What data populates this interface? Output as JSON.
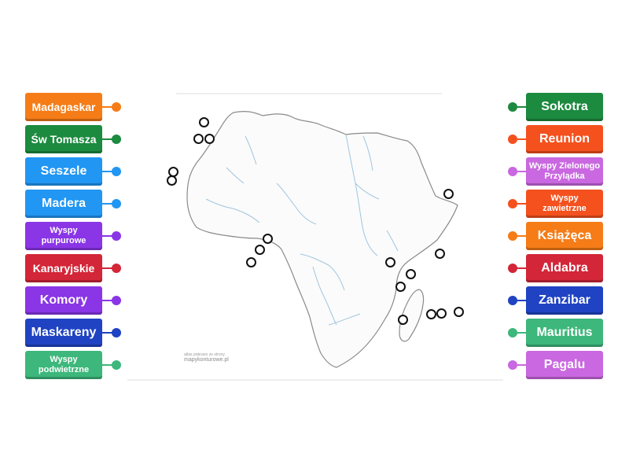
{
  "left_labels": [
    {
      "text": "Madagaskar",
      "color": "#f57c17",
      "size": "mid"
    },
    {
      "text": "Św Tomasza",
      "color": "#1c8a3f",
      "size": "mid"
    },
    {
      "text": "Seszele",
      "color": "#2196f3",
      "size": "big"
    },
    {
      "text": "Madera",
      "color": "#2196f3",
      "size": "big"
    },
    {
      "text": "Wyspy purpurowe",
      "color": "#8a35e6",
      "size": "small"
    },
    {
      "text": "Kanaryjskie",
      "color": "#d32638",
      "size": "mid"
    },
    {
      "text": "Komory",
      "color": "#8a35e6",
      "size": "big"
    },
    {
      "text": "Maskareny",
      "color": "#1f43c2",
      "size": "big"
    },
    {
      "text": "Wyspy podwietrzne",
      "color": "#3db77b",
      "size": "small"
    }
  ],
  "right_labels": [
    {
      "text": "Sokotra",
      "color": "#1c8a3f",
      "size": "big"
    },
    {
      "text": "Reunion",
      "color": "#f4511e",
      "size": "big"
    },
    {
      "text": "Wyspy Zielonego Przylądka",
      "color": "#c968e0",
      "size": "small"
    },
    {
      "text": "Wyspy zawietrzne",
      "color": "#f4511e",
      "size": "small"
    },
    {
      "text": "Książęca",
      "color": "#f57c17",
      "size": "big"
    },
    {
      "text": "Aldabra",
      "color": "#d32638",
      "size": "big"
    },
    {
      "text": "Zanzibar",
      "color": "#1f43c2",
      "size": "big"
    },
    {
      "text": "Mauritius",
      "color": "#3db77b",
      "size": "big"
    },
    {
      "text": "Pagalu",
      "color": "#c968e0",
      "size": "big"
    }
  ],
  "map": {
    "credit_line": "atlas pobrano ze strony",
    "credit_site": "mapykonturowe.pl",
    "marker_count": 18
  }
}
